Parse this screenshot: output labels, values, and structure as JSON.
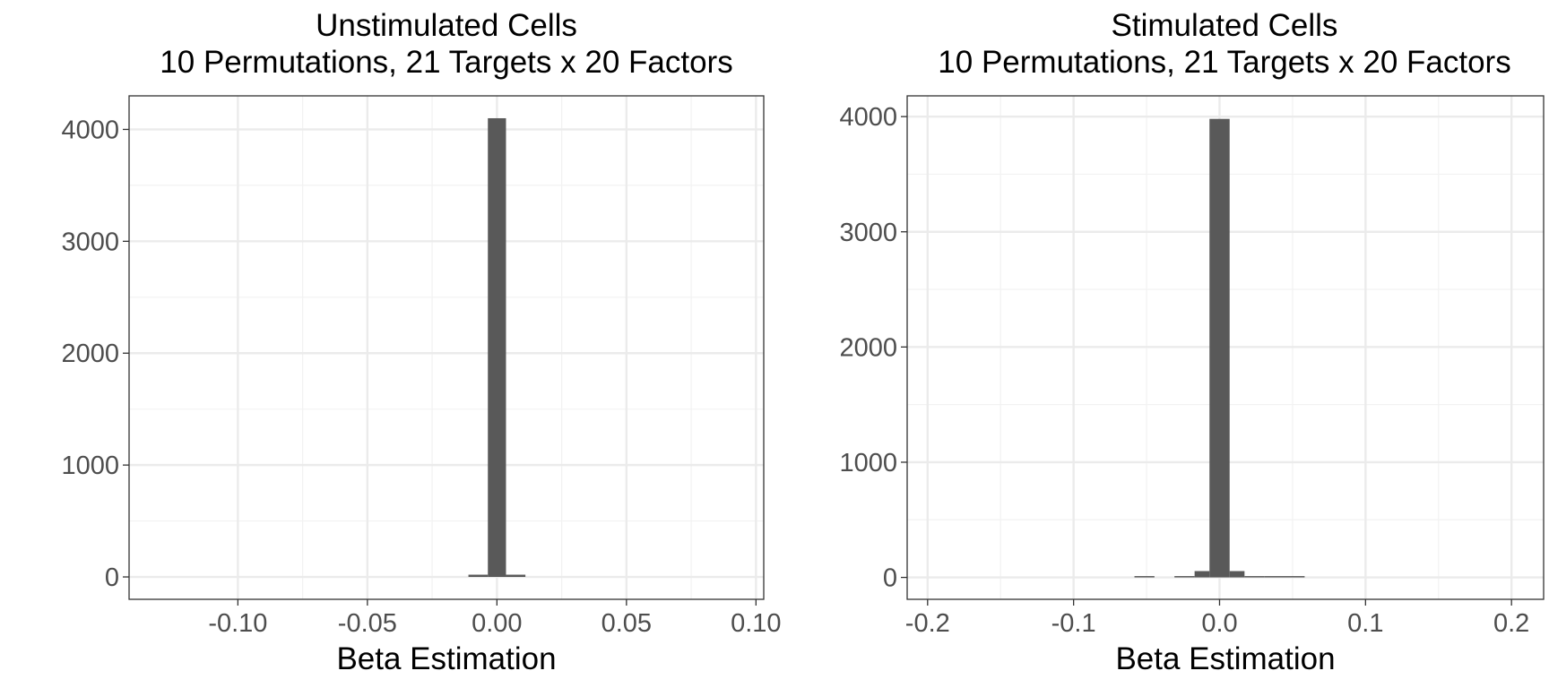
{
  "chart_data": [
    {
      "type": "bar",
      "title": "Unstimulated Cells",
      "subtitle": "10 Permutations, 21 Targets x 20 Factors",
      "xlabel": "Beta Estimation",
      "ylabel": "",
      "xlim": [
        -0.142,
        0.103
      ],
      "ylim": [
        -200,
        4300
      ],
      "x_ticks": [
        -0.1,
        -0.05,
        0.0,
        0.05,
        0.1
      ],
      "x_tick_labels": [
        "-0.10",
        "-0.05",
        "0.00",
        "0.05",
        "0.10"
      ],
      "y_ticks": [
        0,
        1000,
        2000,
        3000,
        4000
      ],
      "y_tick_labels": [
        "0",
        "1000",
        "2000",
        "3000",
        "4000"
      ],
      "grid": true,
      "bar_color": "#595959",
      "bins": [
        {
          "x0": -0.011,
          "x1": -0.0035,
          "value": 20
        },
        {
          "x0": -0.0035,
          "x1": 0.0035,
          "value": 4100
        },
        {
          "x0": 0.0035,
          "x1": 0.011,
          "value": 20
        }
      ]
    },
    {
      "type": "bar",
      "title": "Stimulated Cells",
      "subtitle": "10 Permutations, 21 Targets x 20 Factors",
      "xlabel": "Beta Estimation",
      "ylabel": "",
      "xlim": [
        -0.214,
        0.222
      ],
      "ylim": [
        -190,
        4180
      ],
      "x_ticks": [
        -0.2,
        -0.1,
        0.0,
        0.1,
        0.2
      ],
      "x_tick_labels": [
        "-0.2",
        "-0.1",
        "0.0",
        "0.1",
        "0.2"
      ],
      "y_ticks": [
        0,
        1000,
        2000,
        3000,
        4000
      ],
      "y_tick_labels": [
        "0",
        "1000",
        "2000",
        "3000",
        "4000"
      ],
      "grid": true,
      "bar_color": "#595959",
      "bins": [
        {
          "x0": -0.0583,
          "x1": -0.0446,
          "value": 3
        },
        {
          "x0": -0.0309,
          "x1": -0.0171,
          "value": 5
        },
        {
          "x0": -0.0171,
          "x1": -0.0069,
          "value": 55
        },
        {
          "x0": -0.0069,
          "x1": 0.0069,
          "value": 3980
        },
        {
          "x0": 0.0069,
          "x1": 0.0171,
          "value": 55
        },
        {
          "x0": 0.0171,
          "x1": 0.0309,
          "value": 8
        },
        {
          "x0": 0.0309,
          "x1": 0.0583,
          "value": 3
        }
      ]
    }
  ]
}
